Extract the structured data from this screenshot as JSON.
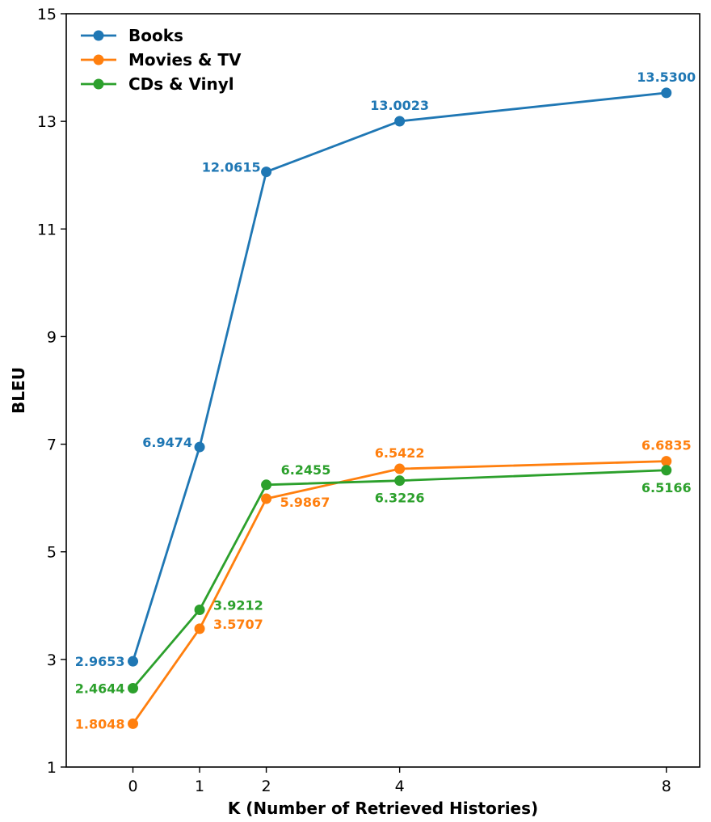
{
  "chart_data": {
    "type": "line",
    "title": "",
    "xlabel": "K (Number of Retrieved Histories)",
    "ylabel": "BLEU",
    "x": [
      0,
      1,
      2,
      4,
      8
    ],
    "xticks": [
      "0",
      "1",
      "2",
      "4",
      "8"
    ],
    "xlim": [
      -1,
      8.5
    ],
    "ylim": [
      1,
      15
    ],
    "yticks": [
      "1",
      "3",
      "5",
      "7",
      "9",
      "11",
      "13",
      "15"
    ],
    "grid": false,
    "legend_position": "top-left",
    "series": [
      {
        "name": "Books",
        "color": "#1f77b4",
        "values": [
          2.9653,
          6.9474,
          12.0615,
          13.0023,
          13.53
        ],
        "labels": [
          "2.9653",
          "6.9474",
          "12.0615",
          "13.0023",
          "13.5300"
        ]
      },
      {
        "name": "Movies & TV",
        "color": "#ff7f0e",
        "values": [
          1.8048,
          3.5707,
          5.9867,
          6.5422,
          6.6835
        ],
        "labels": [
          "1.8048",
          "3.5707",
          "5.9867",
          "6.5422",
          "6.6835"
        ]
      },
      {
        "name": "CDs & Vinyl",
        "color": "#2ca02c",
        "values": [
          2.4644,
          3.9212,
          6.2455,
          6.3226,
          6.5166
        ],
        "labels": [
          "2.4644",
          "3.9212",
          "6.2455",
          "6.3226",
          "6.5166"
        ]
      }
    ]
  }
}
